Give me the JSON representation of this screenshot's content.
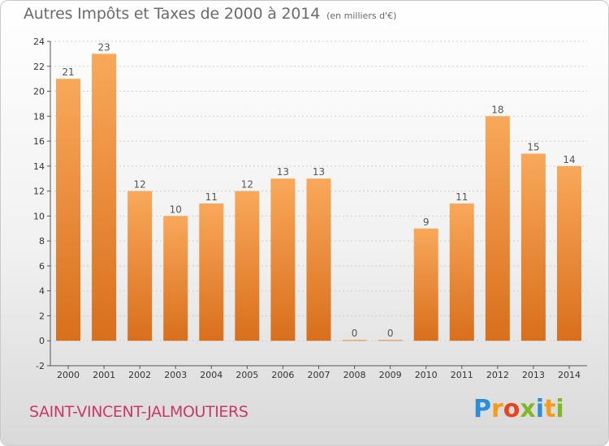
{
  "title": "Autres Impôts et Taxes de 2000 à 2014",
  "title_unit": "(en milliers d'€)",
  "commune": "SAINT-VINCENT-JALMOUTIERS",
  "brand": {
    "letters": [
      "P",
      "r",
      "o",
      "x",
      "i",
      "t",
      "i"
    ],
    "colors": [
      "#2a8ed8",
      "#f29b1d",
      "#e8421e",
      "#7fb928",
      "#2a8ed8",
      "#f29b1d",
      "#7fb928"
    ]
  },
  "colors": {
    "bar_top": "#f9a85a",
    "bar_bottom": "#d86f1c",
    "accent": "#c8396a"
  },
  "chart_data": {
    "type": "bar",
    "categories": [
      "2000",
      "2001",
      "2002",
      "2003",
      "2004",
      "2005",
      "2006",
      "2007",
      "2008",
      "2009",
      "2010",
      "2011",
      "2012",
      "2013",
      "2014"
    ],
    "values": [
      21,
      23,
      12,
      10,
      11,
      12,
      13,
      13,
      0,
      0,
      9,
      11,
      18,
      15,
      14
    ],
    "data_labels": [
      "21",
      "23",
      "12",
      "10",
      "11",
      "12",
      "13",
      "13",
      "0",
      "0",
      "9",
      "11",
      "18",
      "15",
      "14"
    ],
    "y_ticks": [
      -2,
      0,
      2,
      4,
      6,
      8,
      10,
      12,
      14,
      16,
      18,
      20,
      22,
      24
    ],
    "ylim": [
      -2,
      24
    ],
    "grid": true
  }
}
